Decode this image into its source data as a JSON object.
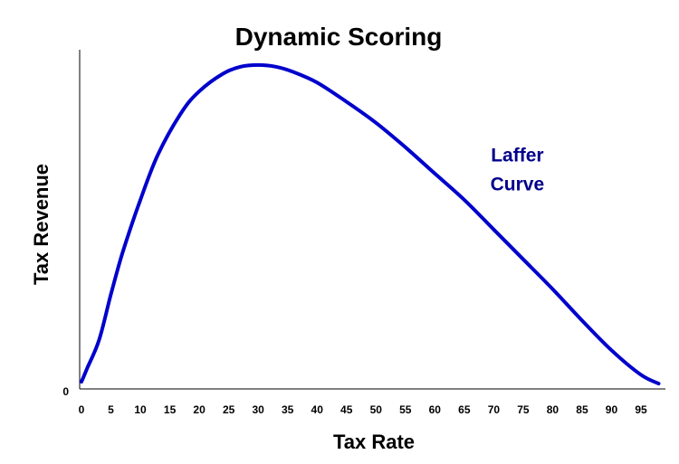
{
  "chart_data": {
    "type": "line",
    "title": "Dynamic Scoring",
    "xlabel": "Tax Rate",
    "ylabel": "Tax Revenue",
    "xlim": [
      0,
      100
    ],
    "ylim": [
      0,
      100
    ],
    "x_ticks": [
      "0",
      "5",
      "10",
      "15",
      "20",
      "25",
      "30",
      "35",
      "40",
      "45",
      "50",
      "55",
      "60",
      "65",
      "70",
      "75",
      "80",
      "85",
      "90",
      "95"
    ],
    "y_ticks": [
      "0"
    ],
    "grid": false,
    "legend": "none",
    "series_color": "#0000cc",
    "series": [
      {
        "x": [
          0,
          1,
          3,
          5,
          7,
          10,
          13,
          17,
          20,
          24,
          27,
          30,
          33,
          36,
          40,
          45,
          50,
          55,
          60,
          65,
          70,
          75,
          80,
          85,
          90,
          95,
          98
        ],
        "y": [
          1,
          5,
          13,
          26,
          38,
          53,
          66,
          78,
          84,
          89,
          91,
          91.5,
          91,
          89.5,
          86.5,
          81,
          75,
          68,
          60.5,
          53,
          44.5,
          36,
          27.5,
          18.5,
          10,
          3,
          0.5
        ]
      }
    ],
    "annotations": [
      {
        "text_lines": [
          "Laffer",
          "Curve"
        ],
        "x": 74,
        "y": 64,
        "color": "#00008b"
      }
    ]
  }
}
